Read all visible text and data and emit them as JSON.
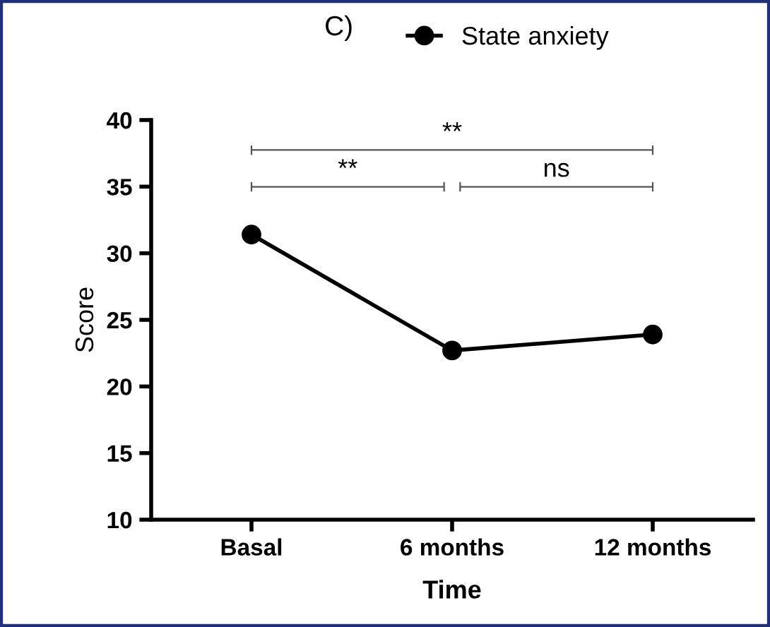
{
  "chart_data": {
    "type": "line",
    "title": "C)",
    "xlabel": "Time",
    "ylabel": "Score",
    "categories": [
      "Basal",
      "6 months",
      "12 months"
    ],
    "series": [
      {
        "name": "State anxiety",
        "color": "#000000",
        "values": [
          31.4,
          22.7,
          23.9
        ]
      }
    ],
    "ylim": [
      10,
      40
    ],
    "yticks": [
      10,
      15,
      20,
      25,
      30,
      35,
      40
    ],
    "annotations": [
      "**",
      "**",
      "ns"
    ],
    "marker": "circle",
    "line_style": "solid",
    "legend": "top",
    "grid": false
  }
}
